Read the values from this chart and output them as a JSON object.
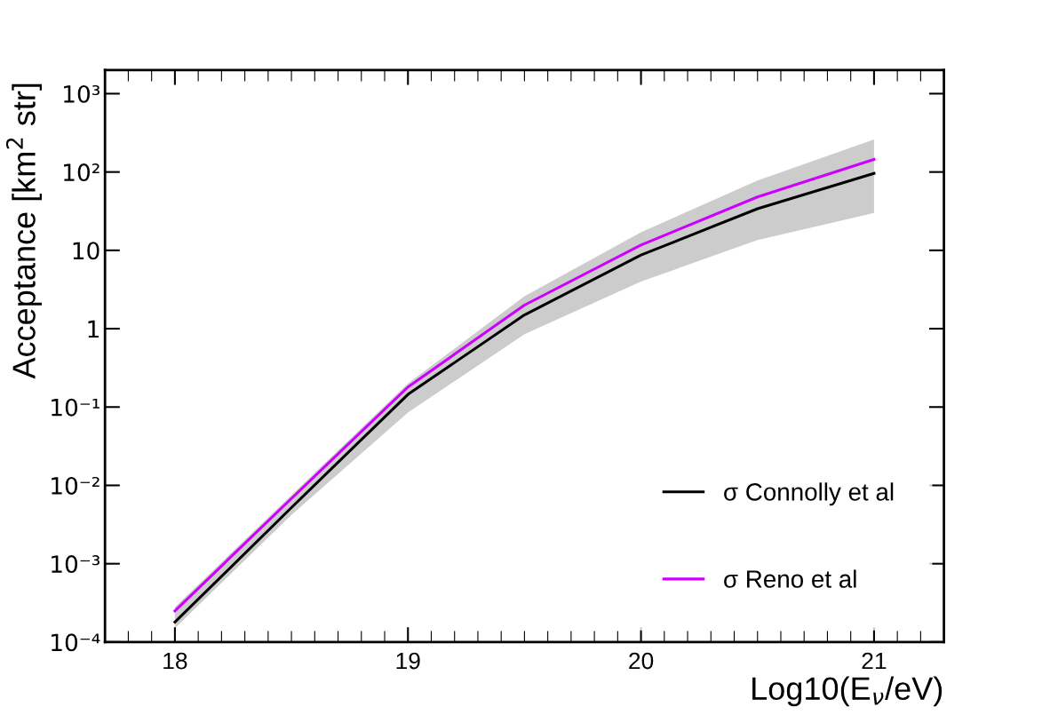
{
  "chart_data": {
    "type": "line",
    "xlabel": "Log10(E$_{ν}$/eV)",
    "ylabel": "Acceptance [km$^{2}$ str]",
    "x": [
      18,
      18.5,
      19,
      19.5,
      20,
      20.5,
      21
    ],
    "series": [
      {
        "name": "σ Connolly et al",
        "color": "#000000",
        "values": [
          0.00018,
          0.0052,
          0.145,
          1.5,
          8.7,
          34,
          96
        ],
        "lower": [
          0.00015,
          0.0042,
          0.085,
          0.85,
          4,
          13.5,
          30
        ],
        "upper": [
          0.00028,
          0.0075,
          0.2,
          2.6,
          17,
          78,
          260
        ]
      },
      {
        "name": "σ Reno et al",
        "color": "#cc00ff",
        "values": [
          0.00025,
          0.0068,
          0.18,
          2.0,
          11.7,
          48,
          145
        ]
      }
    ],
    "log": "y",
    "xlim": [
      17.7,
      21.3
    ],
    "xticks": [
      18,
      19,
      20,
      21
    ],
    "ylim": [
      0.0001,
      2000
    ],
    "yticks": [
      {
        "value": 0.0001,
        "label": "10⁻⁴"
      },
      {
        "value": 0.001,
        "label": "10⁻³"
      },
      {
        "value": 0.01,
        "label": "10⁻²"
      },
      {
        "value": 0.1,
        "label": "10⁻¹"
      },
      1,
      10,
      {
        "value": 100,
        "label": "10²"
      },
      {
        "value": 1000,
        "label": "10³"
      }
    ],
    "grid": false,
    "legend": "bottom right",
    "marker": "none",
    "line_style": "solid"
  }
}
